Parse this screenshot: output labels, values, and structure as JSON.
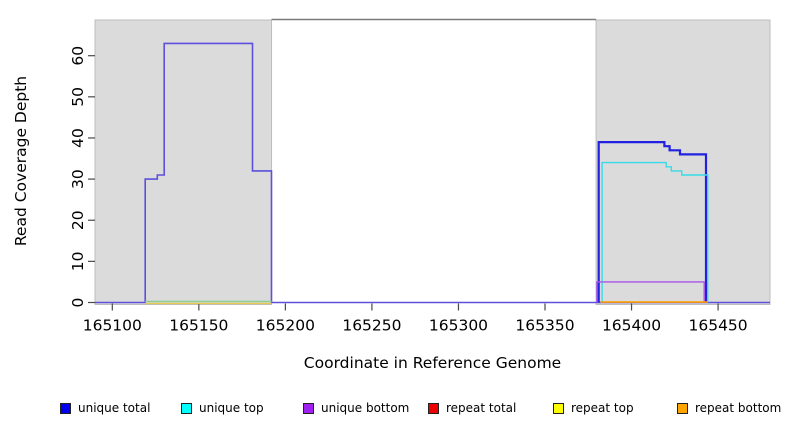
{
  "chart_data": {
    "type": "line",
    "title": "",
    "xlabel": "Coordinate in Reference Genome",
    "ylabel": "Read Coverage Depth",
    "xlim": [
      165090,
      165480
    ],
    "ylim": [
      0,
      68.8
    ],
    "x_ticks": [
      165100,
      165150,
      165200,
      165250,
      165300,
      165350,
      165400,
      165450
    ],
    "y_ticks": [
      0,
      10,
      20,
      30,
      40,
      50,
      60
    ],
    "grid": false,
    "legend_position": "bottom",
    "background_regions": [
      {
        "name": "covered-region-left",
        "x0": 165090,
        "x1": 165192,
        "fill": "#DBDBDB",
        "stroke": "#BDBDBD"
      },
      {
        "name": "covered-region-right",
        "x0": 165379.5,
        "x1": 165480,
        "fill": "#DBDBDB",
        "stroke": "#BDBDBD"
      }
    ],
    "top_border_segment": {
      "x0": 165192,
      "x1": 165379.5,
      "color": "#7a7a7a"
    },
    "series": [
      {
        "name": "unique-total-left-and-baseline",
        "color": "#5C50DC",
        "width": 1.6,
        "points": [
          [
            165090,
            0
          ],
          [
            165119,
            0
          ],
          [
            165119,
            30
          ],
          [
            165126,
            30
          ],
          [
            165126,
            31
          ],
          [
            165130,
            31
          ],
          [
            165130,
            63
          ],
          [
            165181,
            63
          ],
          [
            165181,
            32
          ],
          [
            165192,
            32
          ],
          [
            165192,
            0
          ],
          [
            165480,
            0
          ]
        ]
      },
      {
        "name": "repeat-baseline-left-yellow",
        "color": "#E9C94F",
        "width": 1.2,
        "points": [
          [
            165119,
            -0.25
          ],
          [
            165192,
            -0.25
          ]
        ]
      },
      {
        "name": "baseline-left-green",
        "color": "#8FCE8F",
        "width": 1.4,
        "points": [
          [
            165119,
            0.25
          ],
          [
            165192,
            0.25
          ]
        ]
      },
      {
        "name": "unique-total-right",
        "color": "#2121DF",
        "width": 2.2,
        "points": [
          [
            165381,
            0
          ],
          [
            165381,
            39
          ],
          [
            165419,
            39
          ],
          [
            165419,
            38
          ],
          [
            165422,
            38
          ],
          [
            165422,
            37
          ],
          [
            165428,
            37
          ],
          [
            165428,
            36
          ],
          [
            165443,
            36
          ],
          [
            165443,
            0
          ]
        ]
      },
      {
        "name": "unique-top-right",
        "color": "#35DCE8",
        "width": 1.4,
        "points": [
          [
            165383,
            0
          ],
          [
            165383,
            34
          ],
          [
            165420,
            34
          ],
          [
            165420,
            33
          ],
          [
            165423,
            33
          ],
          [
            165423,
            32
          ],
          [
            165429,
            32
          ],
          [
            165429,
            31
          ],
          [
            165444,
            31
          ],
          [
            165444,
            0
          ]
        ]
      },
      {
        "name": "unique-bottom-right",
        "color": "#A855E8",
        "width": 1.4,
        "points": [
          [
            165380,
            0
          ],
          [
            165380,
            5
          ],
          [
            165442,
            5
          ],
          [
            165442,
            0
          ]
        ]
      },
      {
        "name": "repeat-bottom-right",
        "color": "#FF9D00",
        "width": 1.6,
        "points": [
          [
            165382,
            0.1
          ],
          [
            165444,
            0.1
          ]
        ]
      }
    ],
    "legend": [
      {
        "label": "unique total",
        "color": "#0000EE"
      },
      {
        "label": "unique top",
        "color": "#00FFFF"
      },
      {
        "label": "unique bottom",
        "color": "#A020F0"
      },
      {
        "label": "repeat total",
        "color": "#EE0000"
      },
      {
        "label": "repeat top",
        "color": "#FFFF00"
      },
      {
        "label": "repeat bottom",
        "color": "#FFA500"
      }
    ]
  }
}
